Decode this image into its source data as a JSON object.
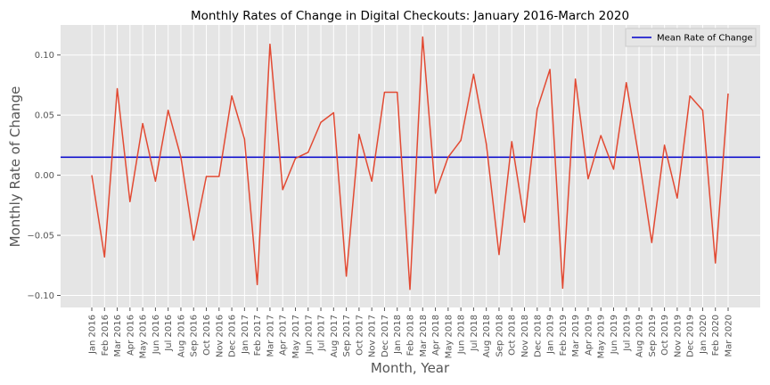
{
  "chart_data": {
    "type": "line",
    "title": "Monthly Rates of Change in Digital Checkouts: January 2016-March 2020",
    "xlabel": "Month, Year",
    "ylabel": "Monthly Rate of Change",
    "ylim": [
      -0.11,
      0.125
    ],
    "yticks": [
      -0.1,
      -0.05,
      0.0,
      0.05,
      0.1
    ],
    "ytick_labels": [
      "−0.10",
      "−0.05",
      "0.00",
      "0.05",
      "0.10"
    ],
    "grid": true,
    "legend": {
      "position": "top-right",
      "entries": [
        "Mean Rate of Change"
      ]
    },
    "categories": [
      "Jan 2016",
      "Feb 2016",
      "Mar 2016",
      "Apr 2016",
      "May 2016",
      "Jun 2016",
      "Jul 2016",
      "Aug 2016",
      "Sep 2016",
      "Oct 2016",
      "Nov 2016",
      "Dec 2016",
      "Jan 2017",
      "Feb 2017",
      "Mar 2017",
      "Apr 2017",
      "May 2017",
      "Jun 2017",
      "Jul 2017",
      "Aug 2017",
      "Sep 2017",
      "Oct 2017",
      "Nov 2017",
      "Dec 2017",
      "Jan 2018",
      "Feb 2018",
      "Mar 2018",
      "Apr 2018",
      "May 2018",
      "Jun 2018",
      "Jul 2018",
      "Aug 2018",
      "Sep 2018",
      "Oct 2018",
      "Nov 2018",
      "Dec 2018",
      "Jan 2019",
      "Feb 2019",
      "Mar 2019",
      "Apr 2019",
      "May 2019",
      "Jun 2019",
      "Jul 2019",
      "Aug 2019",
      "Sep 2019",
      "Oct 2019",
      "Nov 2019",
      "Dec 2019",
      "Jan 2020",
      "Feb 2020",
      "Mar 2020"
    ],
    "series": [
      {
        "color": "#e24a33",
        "values": [
          0.0,
          -0.068,
          0.072,
          -0.022,
          0.043,
          -0.005,
          0.054,
          0.015,
          -0.054,
          -0.001,
          -0.001,
          0.066,
          0.03,
          -0.091,
          0.109,
          -0.012,
          0.014,
          0.019,
          0.044,
          0.052,
          -0.084,
          0.034,
          -0.005,
          0.069,
          0.069,
          -0.095,
          0.115,
          -0.015,
          0.015,
          0.029,
          0.084,
          0.026,
          -0.066,
          0.028,
          -0.039,
          0.055,
          0.088,
          -0.094,
          0.08,
          -0.003,
          0.033,
          0.005,
          0.077,
          0.014,
          -0.056,
          0.025,
          -0.019,
          0.066,
          0.054,
          -0.073,
          0.068
        ]
      }
    ],
    "mean_line": {
      "name": "Mean Rate of Change",
      "value": 0.015,
      "color": "#0000cc"
    },
    "colors": {
      "background": "#e5e5e5",
      "grid": "#ffffff"
    }
  }
}
